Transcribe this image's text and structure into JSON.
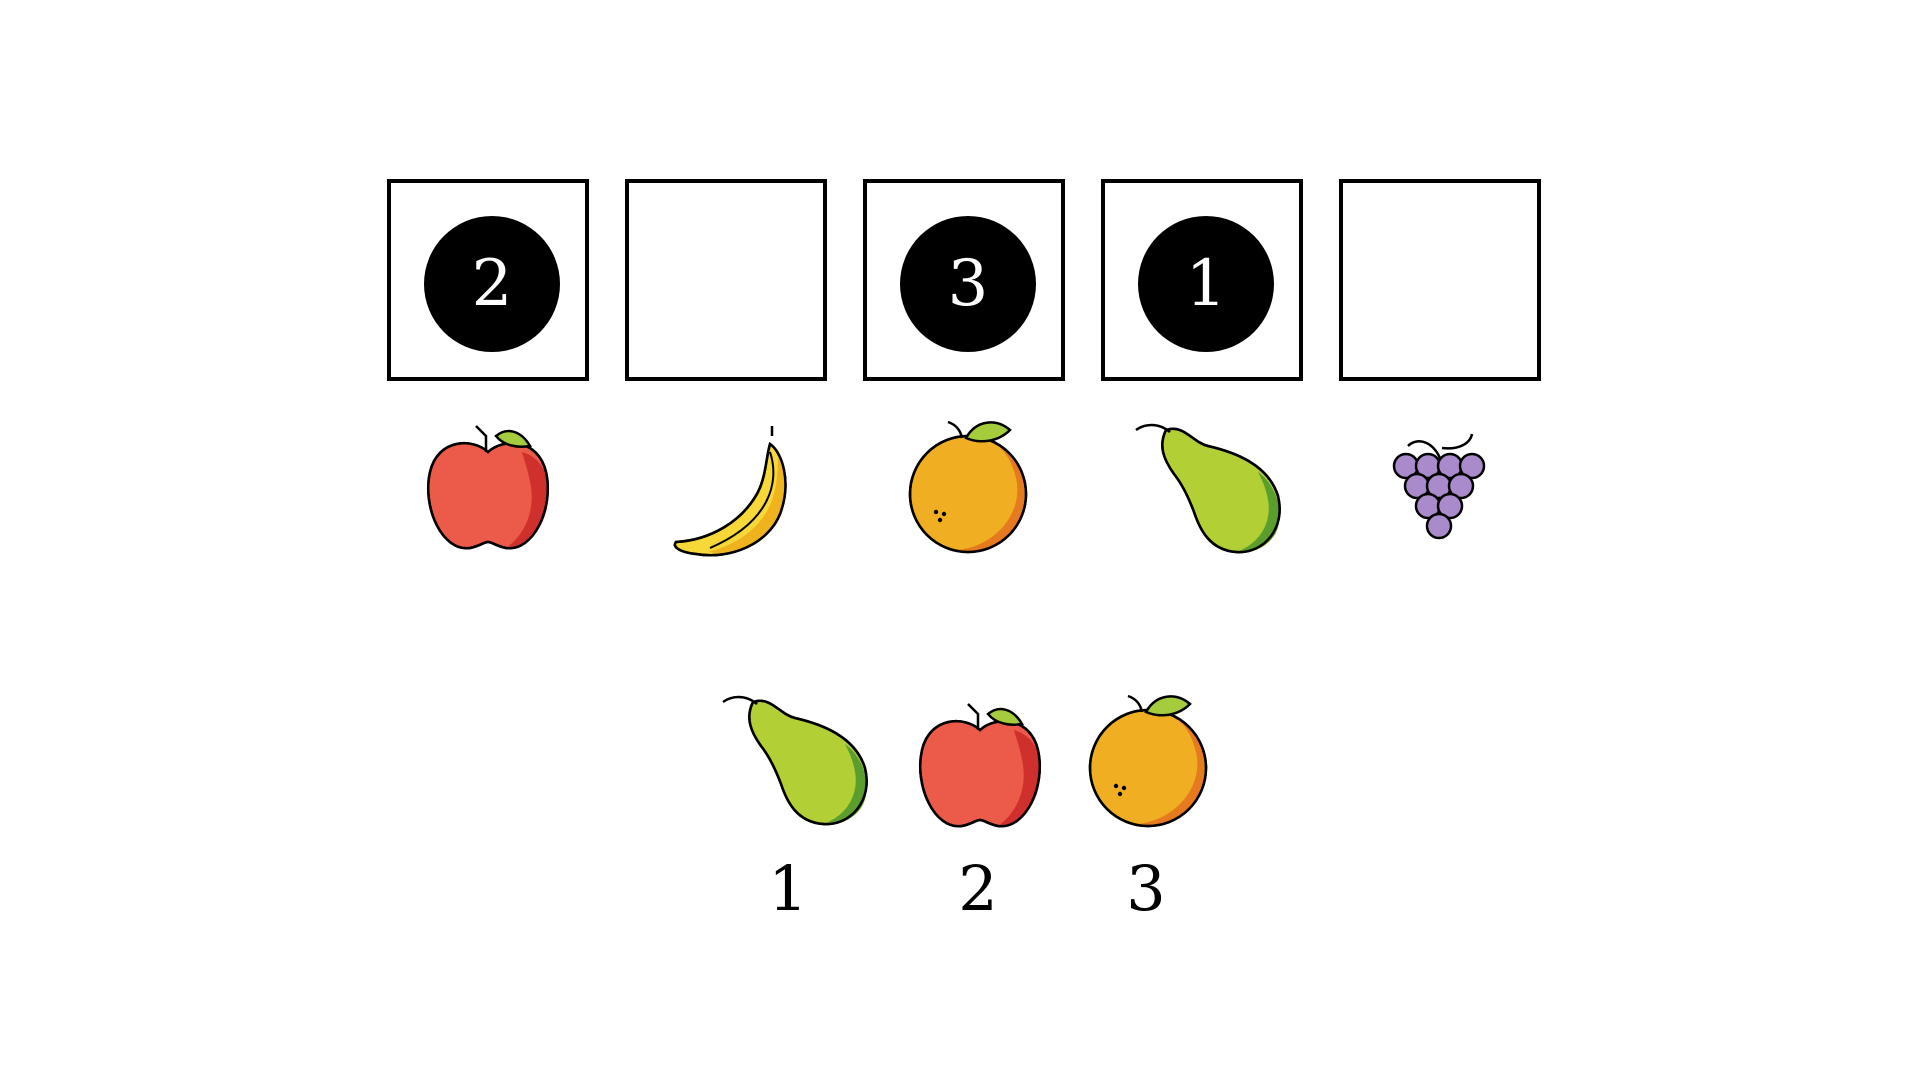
{
  "slots": [
    {
      "fruit": "apple",
      "marker": "2"
    },
    {
      "fruit": "banana",
      "marker": ""
    },
    {
      "fruit": "orange",
      "marker": "3"
    },
    {
      "fruit": "pear",
      "marker": "1"
    },
    {
      "fruit": "grapes",
      "marker": ""
    }
  ],
  "choices": [
    {
      "fruit": "pear",
      "label": "1"
    },
    {
      "fruit": "apple",
      "label": "2"
    },
    {
      "fruit": "orange",
      "label": "3"
    }
  ],
  "colors": {
    "outline": "#000000",
    "apple": "#EC5A4A",
    "apple_shade": "#D0302B",
    "orange": "#F0AE22",
    "orange_shade": "#E57A1F",
    "pear": "#B2CF36",
    "pear_shade": "#5C9E2E",
    "banana": "#F7D839",
    "banana_shade": "#EFB31D",
    "grapes": "#A98ACA",
    "grapes_shade": "#7E5CA8",
    "leaf": "#A4CC3D"
  }
}
